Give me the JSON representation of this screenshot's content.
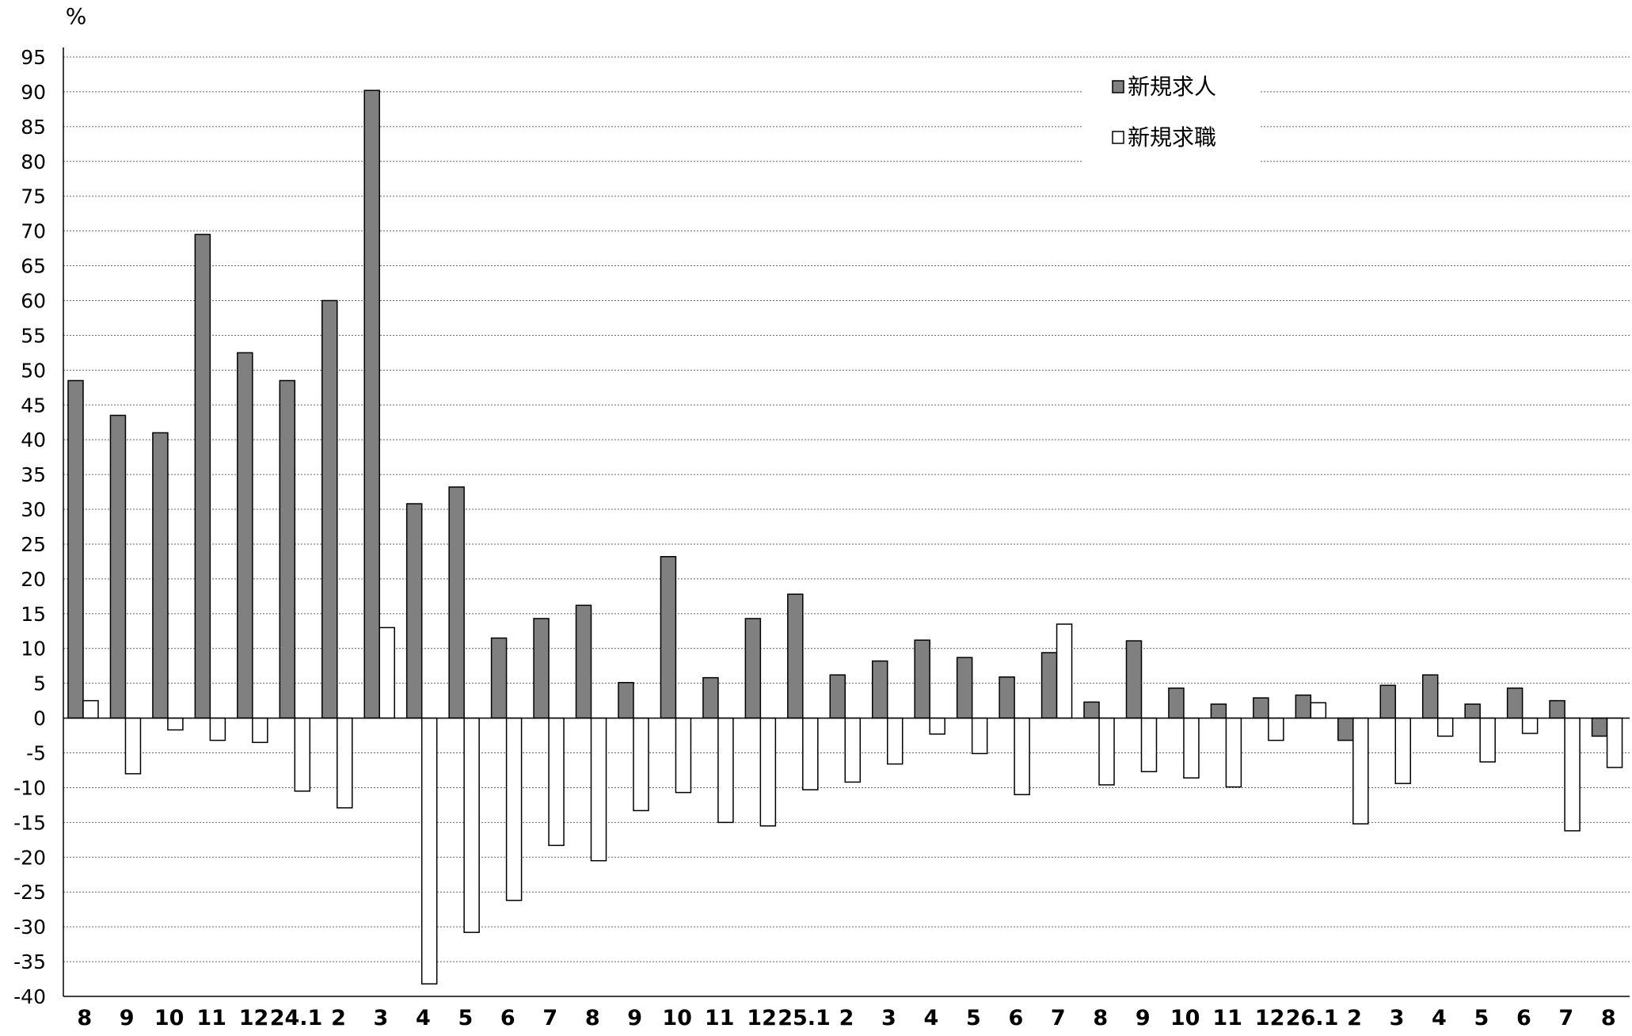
{
  "chart_data": {
    "type": "bar",
    "ylabel": "%",
    "ylim": [
      -40,
      95
    ],
    "ytick_step": 5,
    "grid": true,
    "legend_placement": "top-right",
    "categories": [
      "8",
      "9",
      "10",
      "11",
      "12",
      "24.1",
      "2",
      "3",
      "4",
      "5",
      "6",
      "7",
      "8",
      "9",
      "10",
      "11",
      "12",
      "25.1",
      "2",
      "3",
      "4",
      "5",
      "6",
      "7",
      "8",
      "9",
      "10",
      "11",
      "12",
      "26.1",
      "2",
      "3",
      "4",
      "5",
      "6",
      "7",
      "8"
    ],
    "series": [
      {
        "name": "新規求人",
        "color": "#808080",
        "values": [
          48.5,
          43.5,
          41.0,
          69.5,
          52.5,
          48.5,
          60.0,
          90.2,
          30.8,
          33.2,
          11.5,
          14.3,
          16.2,
          5.1,
          23.2,
          5.8,
          14.3,
          17.8,
          6.2,
          8.2,
          11.2,
          8.7,
          5.9,
          9.4,
          2.3,
          11.1,
          4.3,
          2.0,
          2.9,
          3.3,
          -3.2,
          4.7,
          6.2,
          2.0,
          4.3,
          2.5,
          -2.6
        ]
      },
      {
        "name": "新規求職",
        "color": "#ffffff",
        "values": [
          2.5,
          -8.0,
          -1.7,
          -3.2,
          -3.5,
          -10.5,
          -12.9,
          13.0,
          -38.2,
          -30.8,
          -26.2,
          -18.3,
          -20.5,
          -13.3,
          -10.7,
          -15.0,
          -15.5,
          -10.3,
          -9.2,
          -6.6,
          -2.3,
          -5.1,
          -11.0,
          13.5,
          -9.6,
          -7.7,
          -8.6,
          -9.9,
          -3.2,
          2.2,
          -15.2,
          -9.4,
          -2.6,
          -6.3,
          -2.2,
          -16.2,
          -7.1
        ]
      }
    ]
  }
}
